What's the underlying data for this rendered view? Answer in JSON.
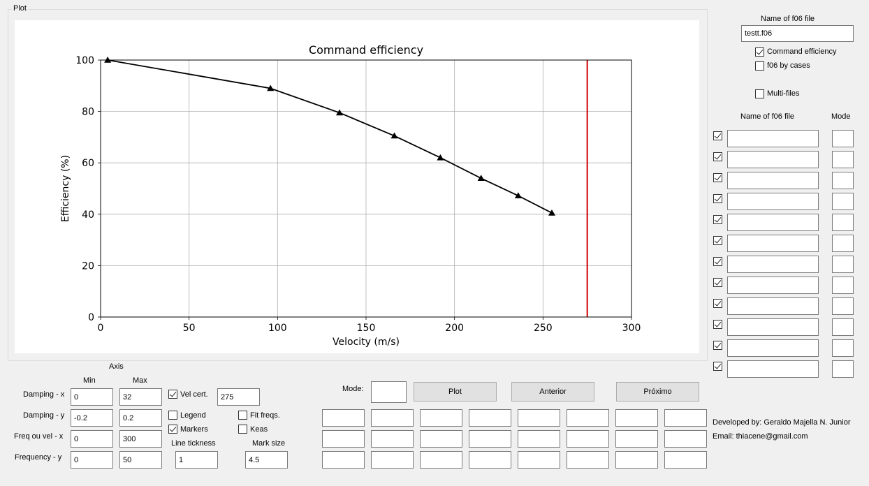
{
  "plot_group": {
    "title": "Plot"
  },
  "chart_data": {
    "type": "line",
    "title": "Command efficiency",
    "xlabel": "Velocity (m/s)",
    "ylabel": "Efficiency (%)",
    "xlim": [
      0,
      300
    ],
    "ylim": [
      0,
      100
    ],
    "xticks": [
      "0",
      "50",
      "100",
      "150",
      "200",
      "250",
      "300"
    ],
    "yticks": [
      "0",
      "20",
      "40",
      "60",
      "80",
      "100"
    ],
    "grid": true,
    "series": [
      {
        "x": [
          4,
          96,
          135,
          166,
          192,
          215,
          236,
          255
        ],
        "y": [
          100,
          89,
          79.5,
          70.5,
          62,
          54,
          47.2,
          40.5
        ],
        "color": "#000000",
        "marker": "triangle"
      }
    ],
    "vline": {
      "x": 275,
      "color": "#d00000"
    }
  },
  "right_panel": {
    "name_label": "Name of f06 file",
    "name_value": "testt.f06",
    "command_efficiency": "Command efficiency",
    "f06_by_cases": "f06 by cases",
    "multi_files": "Multi-files",
    "col_name": "Name of f06 file",
    "col_mode": "Mode",
    "rows": [
      {
        "name": "",
        "mode": ""
      },
      {
        "name": "",
        "mode": ""
      },
      {
        "name": "",
        "mode": ""
      },
      {
        "name": "",
        "mode": ""
      },
      {
        "name": "",
        "mode": ""
      },
      {
        "name": "",
        "mode": ""
      },
      {
        "name": "",
        "mode": ""
      },
      {
        "name": "",
        "mode": ""
      },
      {
        "name": "",
        "mode": ""
      },
      {
        "name": "",
        "mode": ""
      },
      {
        "name": "",
        "mode": ""
      },
      {
        "name": "",
        "mode": ""
      }
    ]
  },
  "axis": {
    "title": "Axis",
    "min_label": "Min",
    "max_label": "Max",
    "rows": [
      {
        "label": "Damping - x",
        "min": "0",
        "max": "32"
      },
      {
        "label": "Damping - y",
        "min": "-0.2",
        "max": "0.2"
      },
      {
        "label": "Freq ou vel - x",
        "min": "0",
        "max": "300"
      },
      {
        "label": "Frequency - y",
        "min": "0",
        "max": "50"
      }
    ],
    "vel_cert_label": "Vel cert.",
    "vel_cert_value": "275",
    "legend_label": "Legend",
    "markers_label": "Markers",
    "fit_freqs_label": "Fit freqs.",
    "keas_label": "Keas",
    "line_tickness_label": "Line tickness",
    "line_tickness_value": "1",
    "mark_size_label": "Mark size",
    "mark_size_value": "4.5"
  },
  "controls": {
    "mode_label": "Mode:",
    "mode_value": "",
    "plot_button": "Plot",
    "anterior_button": "Anterior",
    "proximo_button": "Próximo"
  },
  "credits": {
    "developer": "Developed by: Geraldo Majella N. Junior",
    "email": "Email: thiacene@gmail.com"
  }
}
